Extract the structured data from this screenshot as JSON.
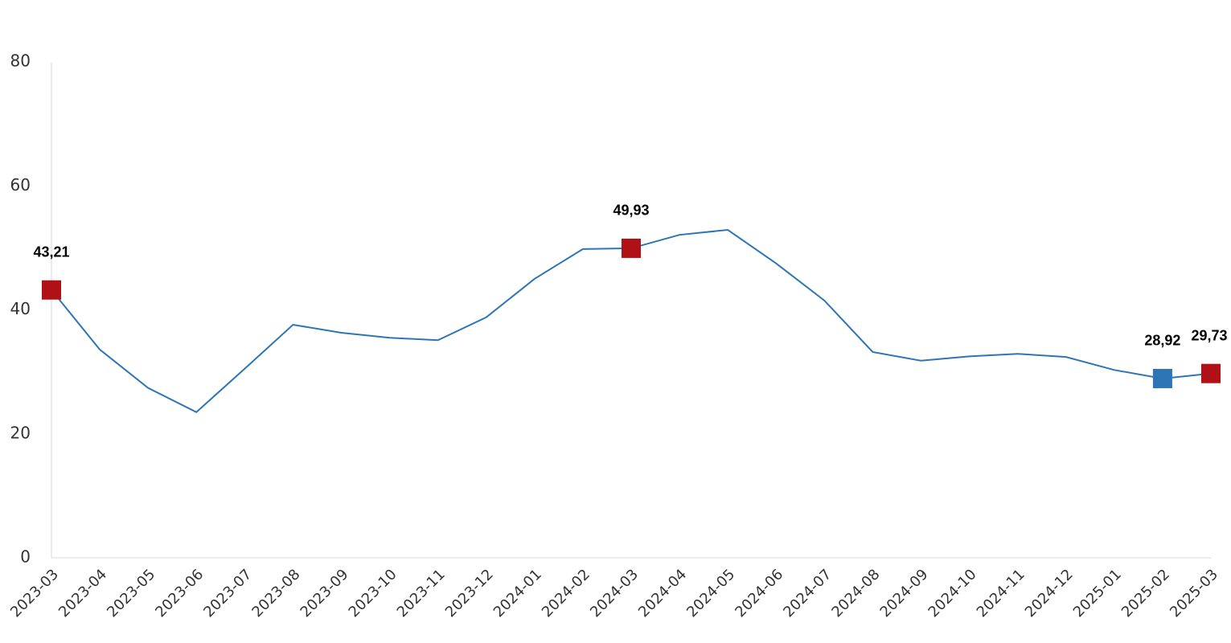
{
  "chart_data": {
    "type": "line",
    "categories": [
      "2023-03",
      "2023-04",
      "2023-05",
      "2023-06",
      "2023-07",
      "2023-08",
      "2023-09",
      "2023-10",
      "2023-11",
      "2023-12",
      "2024-01",
      "2024-02",
      "2024-03",
      "2024-04",
      "2024-05",
      "2024-06",
      "2024-07",
      "2024-08",
      "2024-09",
      "2024-10",
      "2024-11",
      "2024-12",
      "2025-01",
      "2025-02",
      "2025-03"
    ],
    "values": [
      43.21,
      33.6,
      27.4,
      23.5,
      30.5,
      37.6,
      36.3,
      35.5,
      35.1,
      38.8,
      45.0,
      49.8,
      49.93,
      52.1,
      52.9,
      47.5,
      41.5,
      33.2,
      31.8,
      32.5,
      32.9,
      32.4,
      30.3,
      28.92,
      29.73
    ],
    "value_labels": [
      "43,21",
      null,
      null,
      null,
      null,
      null,
      null,
      null,
      null,
      null,
      null,
      null,
      "49,93",
      null,
      null,
      null,
      null,
      null,
      null,
      null,
      null,
      null,
      null,
      "28,92",
      "29,73"
    ],
    "marker_colors": [
      "#b01116",
      null,
      null,
      null,
      null,
      null,
      null,
      null,
      null,
      null,
      null,
      null,
      "#b01116",
      null,
      null,
      null,
      null,
      null,
      null,
      null,
      null,
      null,
      null,
      "#2e75b6",
      "#b01116"
    ],
    "color": "#2e75b6",
    "ylim": [
      0,
      80
    ],
    "yticks": [
      0,
      20,
      40,
      60,
      80
    ],
    "grid": false
  }
}
